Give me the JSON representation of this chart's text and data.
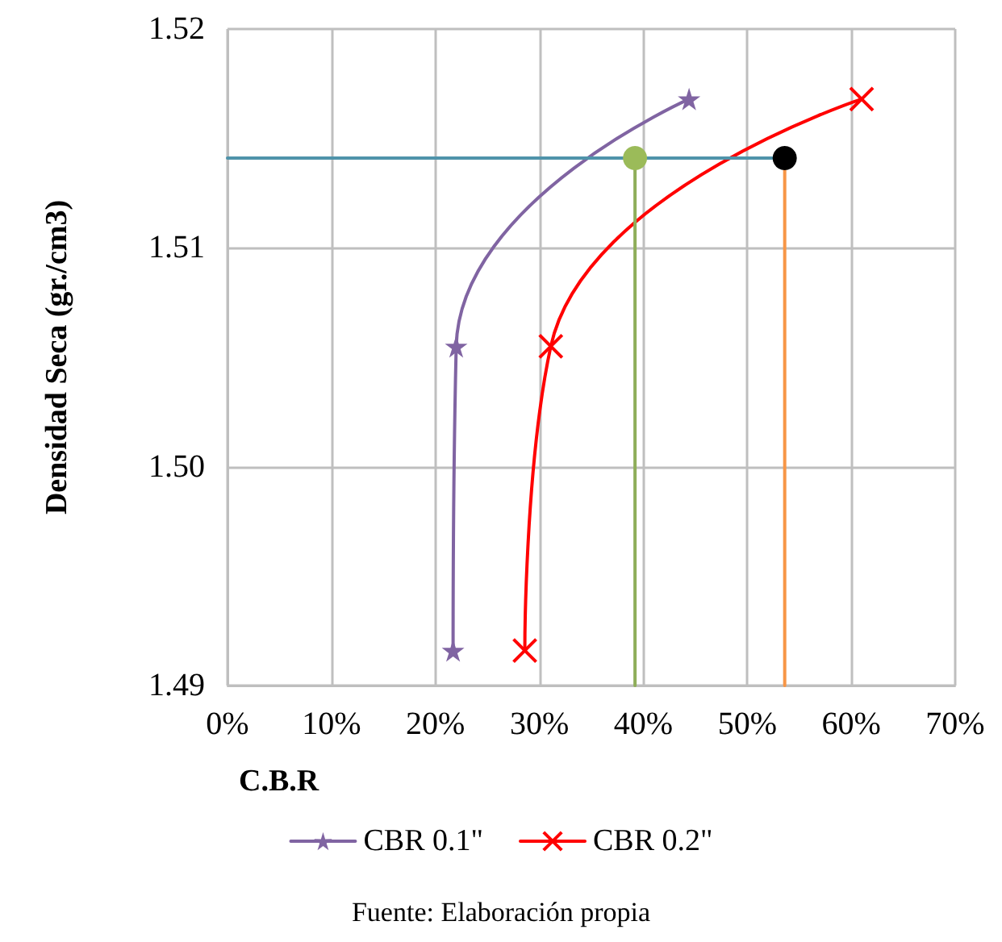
{
  "chart_data": {
    "type": "line",
    "xlabel": "C.B.R",
    "ylabel": "Densidad Seca (gr./cm3)",
    "annotations": [
      "Fuente: Elaboración propia"
    ],
    "xlim": [
      0,
      70
    ],
    "xticks": [
      {
        "value": 0,
        "label": "0%"
      },
      {
        "value": 10,
        "label": "10%"
      },
      {
        "value": 20,
        "label": "20%"
      },
      {
        "value": 30,
        "label": "30%"
      },
      {
        "value": 40,
        "label": "40%"
      },
      {
        "value": 50,
        "label": "50%"
      },
      {
        "value": 60,
        "label": "60%"
      },
      {
        "value": 70,
        "label": "70%"
      }
    ],
    "ylim": [
      1.49,
      1.52
    ],
    "yticks": [
      1.49,
      {
        "value": 1.5,
        "label": "1.50"
      },
      1.51,
      1.52
    ],
    "grid": true,
    "legend": "bottom",
    "series": [
      {
        "name": "CBR 0.1\"",
        "color": "#8064a2",
        "marker": "star",
        "x": [
          21.7,
          22.0,
          44.4
        ],
        "values": [
          1.4916,
          1.5055,
          1.5168
        ]
      },
      {
        "name": "CBR 0.2\"",
        "color": "#ff0000",
        "marker": "cross",
        "x": [
          28.6,
          31.1,
          61.0
        ],
        "values": [
          1.4916,
          1.5055,
          1.5168
        ]
      },
      {
        "color": "#4f93aa",
        "marker": "none",
        "x": [
          0,
          53.6
        ],
        "values": [
          1.5141,
          1.5141
        ]
      },
      {
        "color": "#8fae5a",
        "marker": "none",
        "x": [
          39.2,
          39.2
        ],
        "values": [
          1.49,
          1.5141
        ]
      },
      {
        "color": "#f79646",
        "marker": "none",
        "x": [
          53.6,
          53.6
        ],
        "values": [
          1.49,
          1.5141
        ]
      },
      {
        "type": "scatter",
        "color": "#9bbb59",
        "marker": "circle",
        "x": [
          39.2
        ],
        "values": [
          1.5141
        ]
      },
      {
        "type": "scatter",
        "color": "#000000",
        "marker": "circle",
        "x": [
          53.6
        ],
        "values": [
          1.5141
        ]
      }
    ]
  }
}
